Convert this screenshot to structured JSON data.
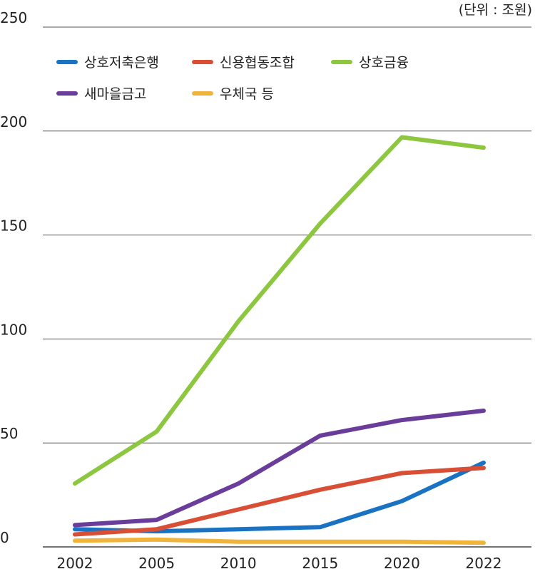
{
  "chart_data": {
    "type": "line",
    "unit_label": "(단위 : 조원)",
    "x": [
      "2002",
      "2005",
      "2010",
      "2015",
      "2020",
      "2022"
    ],
    "ylim": [
      0,
      250
    ],
    "yticks": [
      0,
      50,
      100,
      150,
      200,
      250
    ],
    "grid": true,
    "legend_position": "top-left",
    "series": [
      {
        "name": "상호저축은행",
        "color": "#1a73c2",
        "values": [
          8.5,
          7.5,
          8.5,
          9.5,
          22,
          40.5
        ]
      },
      {
        "name": "신용협동조합",
        "color": "#d94f35",
        "values": [
          6,
          8.5,
          18,
          27.5,
          35.5,
          38
        ]
      },
      {
        "name": "상호금융",
        "color": "#8dc63f",
        "values": [
          30.5,
          55.5,
          108.5,
          155.5,
          197,
          192
        ]
      },
      {
        "name": "새마을금고",
        "color": "#6a3d9a",
        "values": [
          10.5,
          13,
          30.5,
          53.5,
          61,
          65.5
        ]
      },
      {
        "name": "우체국 등",
        "color": "#f0b43c",
        "values": [
          3,
          3.5,
          2.5,
          2.5,
          2.5,
          2
        ]
      }
    ]
  }
}
